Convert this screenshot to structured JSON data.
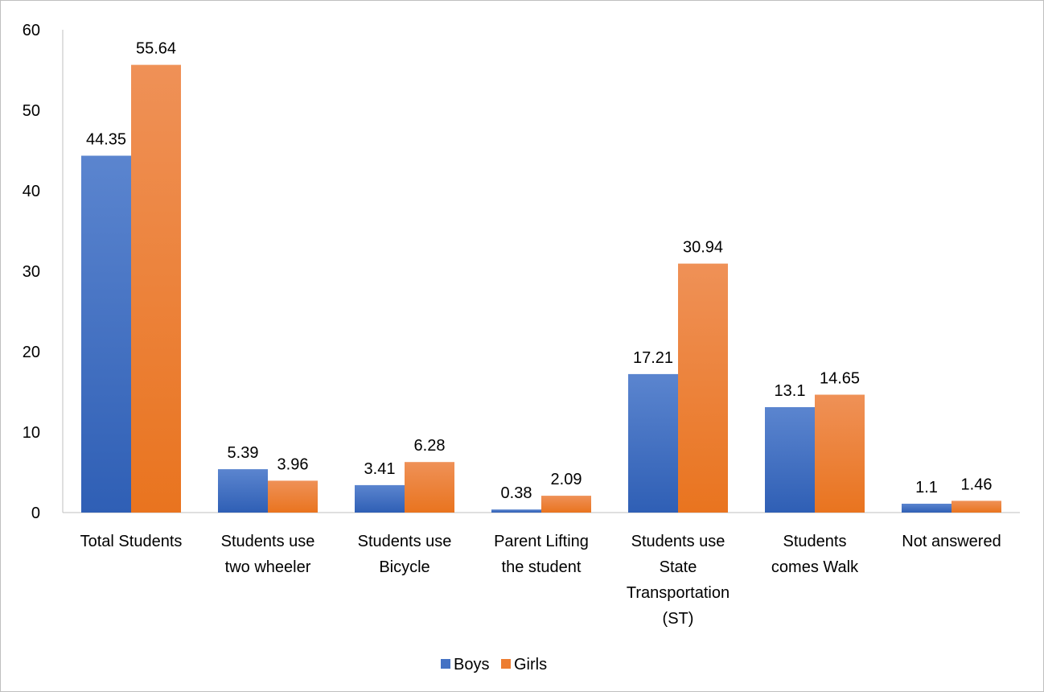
{
  "chart_data": {
    "type": "bar",
    "title": "",
    "xlabel": "",
    "ylabel": "",
    "ylim": [
      0,
      60
    ],
    "yticks": [
      "0",
      "10",
      "20",
      "30",
      "40",
      "50",
      "60"
    ],
    "grid": false,
    "legend_position": "bottom",
    "categories": [
      [
        "Total Students"
      ],
      [
        "Students use",
        "two wheeler"
      ],
      [
        "Students use",
        "Bicycle"
      ],
      [
        "Parent Lifting",
        "the student"
      ],
      [
        "Students use",
        "State",
        "Transportation",
        "(ST)"
      ],
      [
        "Students",
        "comes Walk"
      ],
      [
        "Not answered"
      ]
    ],
    "series": [
      {
        "name": "Boys",
        "color": "#4472c4",
        "values": [
          44.35,
          5.39,
          3.41,
          0.38,
          17.21,
          13.1,
          1.1
        ]
      },
      {
        "name": "Girls",
        "color": "#ed7d31",
        "values": [
          55.64,
          3.96,
          6.28,
          2.09,
          30.94,
          14.65,
          1.46
        ]
      }
    ]
  }
}
